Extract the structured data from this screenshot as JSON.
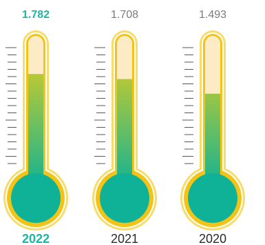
{
  "chart_data": {
    "type": "bar",
    "orientation": "vertical",
    "style": "thermometer",
    "categories": [
      "2022",
      "2021",
      "2020"
    ],
    "values": [
      1.782,
      1.708,
      1.493
    ],
    "value_labels": [
      "1.782",
      "1.708",
      "1.493"
    ],
    "highlighted_category": "2022",
    "ylim": [
      0,
      2.2
    ],
    "grid": false,
    "legend": "none",
    "colors": {
      "highlight_text": "#1fb5a4",
      "muted_text": "#7a7a7a",
      "category_text": "#2a2a2a",
      "outline_gold": "#f2c417",
      "outline_light": "#f7dc6c",
      "tube_empty": "#fdebc6",
      "fill_top": "#c9cb2c",
      "fill_bottom": "#0fb296",
      "tick": "#555555"
    }
  }
}
